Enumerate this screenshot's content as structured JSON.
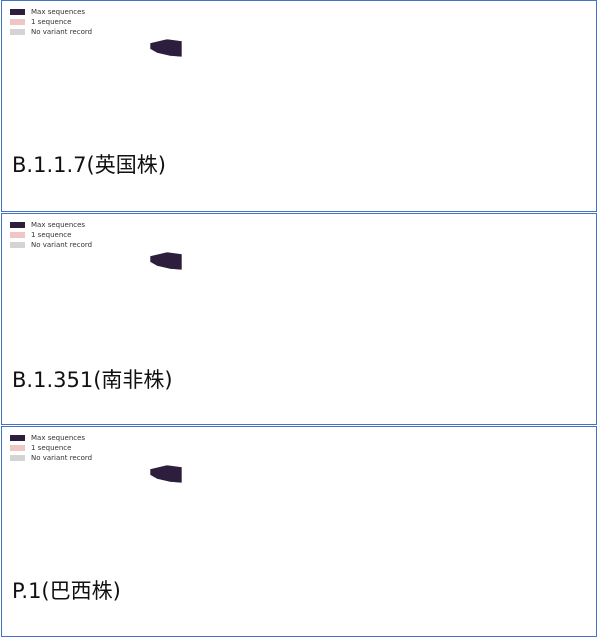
{
  "legend": {
    "max": "Max sequences",
    "one": "1 sequence",
    "none": "No variant record"
  },
  "colors": {
    "max": "#2d1e3e",
    "mid": "#a5628b",
    "one": "#efc6c6",
    "none": "#d4d4d4",
    "border": "#4472c4"
  },
  "panels": [
    {
      "label": "B.1.1.7(英国株)",
      "fills": {
        "alaska": "max",
        "canada": "mid",
        "greenland": "none",
        "usa": "max",
        "mexico": "mid",
        "sa_north": "mid",
        "brazil": "mid",
        "sa_south": "mid",
        "europe": "max",
        "scand": "max",
        "russia": "mid",
        "n_africa": "none",
        "sub_africa": "none",
        "s_africa": "mid",
        "mideast": "mid",
        "india": "mid",
        "china": "one",
        "se_asia": "mid",
        "japan": "mid",
        "australia": "mid",
        "nz": "mid"
      }
    },
    {
      "label": "B.1.351(南非株)",
      "fills": {
        "alaska": "max",
        "canada": "mid",
        "greenland": "none",
        "usa": "max",
        "mexico": "one",
        "sa_north": "none",
        "brazil": "one",
        "sa_south": "one",
        "europe": "max",
        "scand": "mid",
        "russia": "mid",
        "n_africa": "none",
        "sub_africa": "mid",
        "s_africa": "max",
        "mideast": "none",
        "india": "mid",
        "china": "none",
        "se_asia": "one",
        "japan": "mid",
        "australia": "mid",
        "nz": "mid"
      }
    },
    {
      "label": "P.1(巴西株)",
      "fills": {
        "alaska": "max",
        "canada": "one",
        "greenland": "none",
        "usa": "max",
        "mexico": "mid",
        "sa_north": "mid",
        "brazil": "max",
        "sa_south": "mid",
        "europe": "mid",
        "scand": "one",
        "russia": "none",
        "n_africa": "none",
        "sub_africa": "none",
        "s_africa": "none",
        "mideast": "none",
        "india": "none",
        "china": "one",
        "se_asia": "none",
        "japan": "mid",
        "australia": "one",
        "nz": "mid"
      }
    }
  ]
}
